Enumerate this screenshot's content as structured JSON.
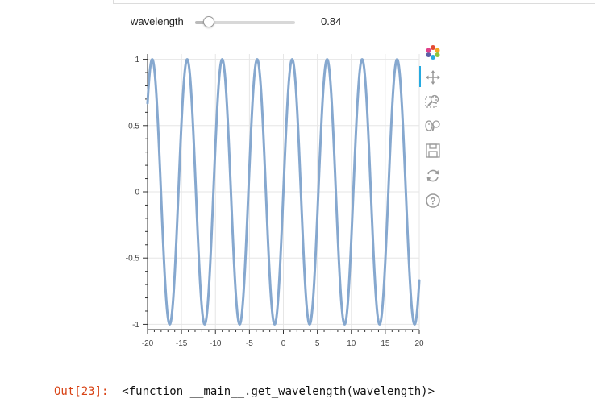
{
  "widget": {
    "slider_label": "wavelength",
    "value_text": "0.84",
    "fraction": 0.14
  },
  "chart_data": {
    "type": "line",
    "title": "",
    "xlabel": "",
    "ylabel": "",
    "xlim": [
      -20,
      20
    ],
    "ylim": [
      -1,
      1
    ],
    "x_ticks": [
      "-20",
      "-15",
      "-10",
      "-5",
      "0",
      "5",
      "10",
      "15",
      "20"
    ],
    "y_ticks": [
      "1",
      "0.5",
      "0",
      "-0.5",
      "-1"
    ],
    "grid": true,
    "series": [
      {
        "function": "sin",
        "x_range": [
          -20,
          20
        ],
        "frequency": 1.22,
        "line_color": "#86a8cf"
      }
    ]
  },
  "toolbar": {
    "tools": [
      "bokeh-logo-icon",
      "pan-icon",
      "box-zoom-icon",
      "wheel-zoom-icon",
      "save-icon",
      "reset-icon",
      "help-icon"
    ]
  },
  "output": {
    "prompt": "Out[23]:",
    "text": "<function __main__.get_wavelength(wavelength)>"
  }
}
